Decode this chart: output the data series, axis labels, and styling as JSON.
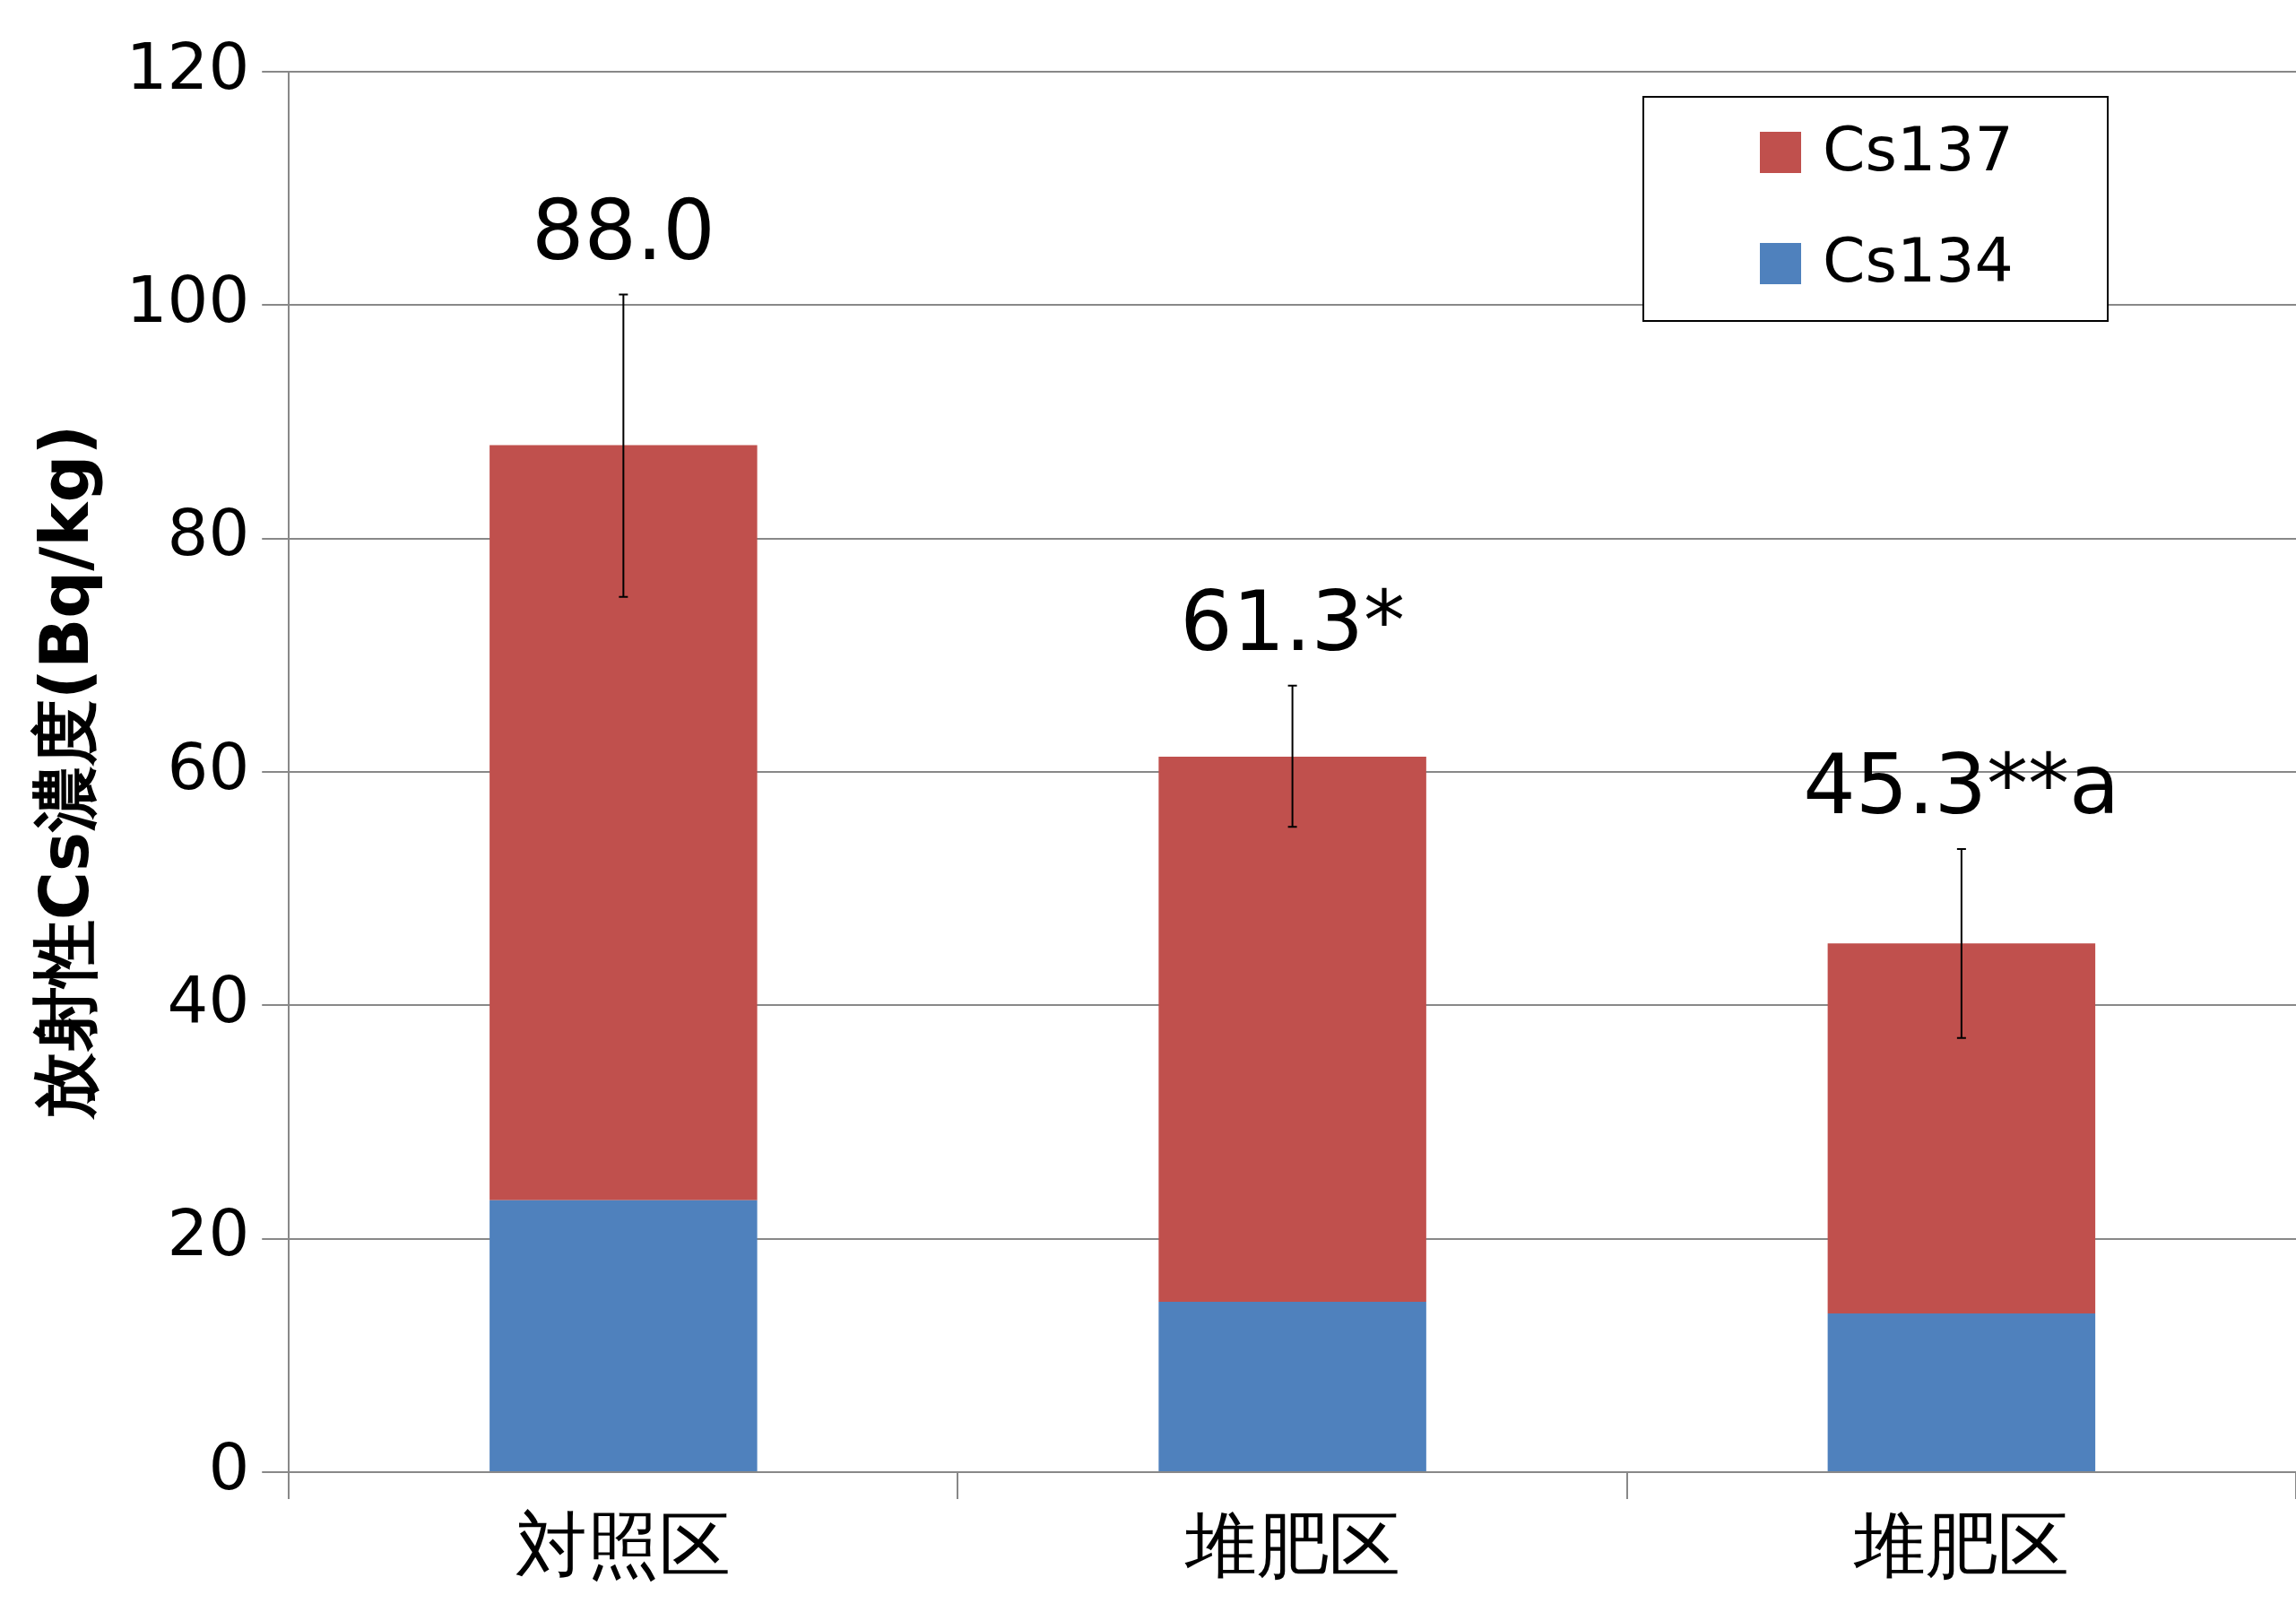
{
  "chart_data": {
    "type": "bar",
    "stacked": true,
    "ylabel": "放射性Cs濃度(Bq/kg)",
    "categories": [
      "対照区",
      "堆肥区",
      "堆肥区"
    ],
    "series": [
      {
        "name": "Cs134",
        "color": "#4f81bd",
        "values": [
          23.3,
          14.6,
          13.6
        ]
      },
      {
        "name": "Cs137",
        "color": "#c0504d",
        "values": [
          64.7,
          46.7,
          31.7
        ],
        "errors": [
          [
            75.0,
            100.9
          ],
          [
            55.3,
            67.4
          ],
          [
            37.2,
            53.4
          ]
        ]
      }
    ],
    "totals": [
      "88.0",
      "61.3*",
      "45.3**a"
    ],
    "ylim": [
      0,
      120
    ],
    "yticks": [
      0,
      20,
      40,
      60,
      80,
      100,
      120
    ],
    "grid": "y",
    "legend": "top right"
  }
}
